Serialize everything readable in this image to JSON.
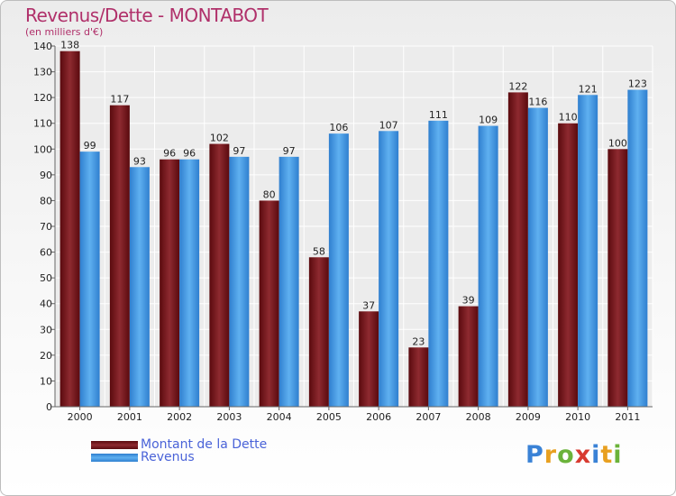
{
  "header": {
    "title": "Revenus/Dette - MONTABOT",
    "subtitle": "(en milliers d'€)"
  },
  "logo": {
    "letters": [
      "P",
      "r",
      "o",
      "x",
      "i",
      "t",
      "i"
    ],
    "colors": [
      "#3a82d6",
      "#e8a020",
      "#6bb33a",
      "#d83a30",
      "#3a82d6",
      "#e8a020",
      "#6bb33a"
    ]
  },
  "chart_data": {
    "type": "bar",
    "categories": [
      "2000",
      "2001",
      "2002",
      "2003",
      "2004",
      "2005",
      "2006",
      "2007",
      "2008",
      "2009",
      "2010",
      "2011"
    ],
    "series": [
      {
        "name": "Montant de la Dette",
        "color": "#7a1a1f",
        "values": [
          138,
          117,
          96,
          102,
          80,
          58,
          37,
          23,
          39,
          122,
          110,
          100
        ]
      },
      {
        "name": "Revenus",
        "color": "#3d8fd9",
        "values": [
          99,
          93,
          96,
          97,
          97,
          106,
          107,
          111,
          109,
          116,
          121,
          123
        ]
      }
    ],
    "yticks": [
      0,
      10,
      20,
      30,
      40,
      50,
      60,
      70,
      80,
      90,
      100,
      110,
      120,
      130,
      140
    ],
    "ylim": [
      0,
      140
    ],
    "grid": true,
    "legend_position": "bottom-left"
  }
}
